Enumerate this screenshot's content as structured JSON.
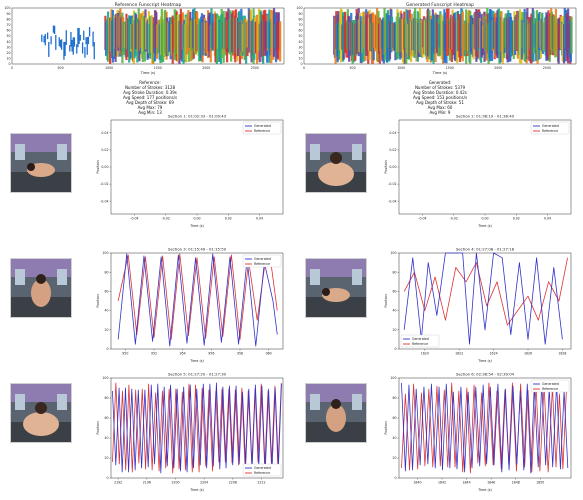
{
  "colors": {
    "generated": "#3333cc",
    "reference": "#dd3333",
    "heat_blue": "#1f6fd1",
    "heat_teal": "#1aa68f",
    "heat_green": "#55b545",
    "heat_yellow": "#e0c020",
    "heat_orange": "#ee7f1a",
    "heat_red": "#d83030",
    "heat_purple": "#6a3fa0"
  },
  "heatmaps": [
    {
      "title": "Reference Funscript Heatmap",
      "xlabel": "Time (s)",
      "yticks": [
        "100",
        "90",
        "80",
        "70",
        "60",
        "50",
        "40",
        "30",
        "20",
        "10",
        "0"
      ],
      "xticks": [
        "0",
        "500",
        "1000",
        "1500",
        "2000",
        "2500"
      ],
      "stats": [
        "Reference:",
        "Number of Strokes: 3128",
        "Avg Stroke Duration: 0.39s",
        "Avg Speed: 177 positions/s",
        "Avg Depth of Stroke: 69",
        "Avg Max: 79",
        "Avg Min: 13"
      ]
    },
    {
      "title": "Generated Funscript Heatmap",
      "xlabel": "Time (s)",
      "yticks": [
        "100",
        "90",
        "80",
        "70",
        "60",
        "50",
        "40",
        "30",
        "20",
        "10",
        "0"
      ],
      "xticks": [
        "0",
        "500",
        "1000",
        "1500",
        "2000",
        "2500"
      ],
      "stats": [
        "Generated:",
        "Number of Strokes: 5379",
        "Avg Stroke Duration: 0.42s",
        "Avg Speed: 153 positions/s",
        "Avg Depth of Stroke: 51",
        "Avg Max: 60",
        "Avg Min: 9"
      ]
    }
  ],
  "thumbnails": [
    {
      "label": "vr-frame-section-1"
    },
    {
      "label": "vr-frame-section-2"
    },
    {
      "label": "vr-frame-section-3"
    },
    {
      "label": "vr-frame-section-4"
    },
    {
      "label": "vr-frame-section-5"
    },
    {
      "label": "vr-frame-section-6"
    }
  ],
  "chart_data": [
    {
      "type": "line",
      "title": "Section 1: 01:02:33 - 01:09:43",
      "xlabel": "Time (s)",
      "ylabel": "Position",
      "legend": "top-right",
      "xlim": [
        -0.055,
        0.055
      ],
      "ylim": [
        -0.055,
        0.055
      ],
      "xticks": [
        "-0.04",
        "-0.02",
        "0.00",
        "0.02",
        "0.04"
      ],
      "yticks": [
        "0.04",
        "0.02",
        "0.00",
        "-0.02",
        "-0.04"
      ],
      "xtickvals": [
        -0.04,
        -0.02,
        0.0,
        0.02,
        0.04
      ],
      "ytickvals": [
        0.04,
        0.02,
        0.0,
        -0.02,
        -0.04
      ],
      "series": [
        {
          "name": "Generated",
          "x": [],
          "y": []
        },
        {
          "name": "Reference",
          "x": [],
          "y": []
        }
      ]
    },
    {
      "type": "line",
      "title": "Section 2: 01:38:19 - 01:38:40",
      "xlabel": "Time (s)",
      "ylabel": "Position",
      "legend": "top-right",
      "xlim": [
        -0.055,
        0.055
      ],
      "ylim": [
        -0.055,
        0.055
      ],
      "xticks": [
        "-0.04",
        "-0.02",
        "0.00",
        "0.02",
        "0.04"
      ],
      "yticks": [
        "0.04",
        "0.02",
        "0.00",
        "-0.02",
        "-0.04"
      ],
      "xtickvals": [
        -0.04,
        -0.02,
        0.0,
        0.02,
        0.04
      ],
      "ytickvals": [
        0.04,
        0.02,
        0.0,
        -0.02,
        -0.04
      ],
      "series": [
        {
          "name": "Generated",
          "x": [],
          "y": []
        },
        {
          "name": "Reference",
          "x": [],
          "y": []
        }
      ]
    },
    {
      "type": "line",
      "title": "Section 3: 01:15:49 - 01:15:59",
      "xlabel": "Time (s)",
      "ylabel": "Position",
      "legend": "top-right",
      "xlim": [
        949,
        961
      ],
      "ylim": [
        0,
        100
      ],
      "xticks": [
        "950",
        "952",
        "954",
        "956",
        "958",
        "960"
      ],
      "yticks": [
        "100",
        "80",
        "60",
        "40",
        "20",
        "0"
      ],
      "xtickvals": [
        950,
        952,
        954,
        956,
        958,
        960
      ],
      "ytickvals": [
        100,
        80,
        60,
        40,
        20,
        0
      ],
      "series": [
        {
          "name": "Generated",
          "x": [
            949.5,
            950.1,
            950.7,
            951.3,
            951.9,
            952.5,
            953.1,
            953.7,
            954.3,
            954.9,
            955.5,
            956.1,
            956.7,
            957.3,
            957.9,
            958.5,
            959.1,
            959.7,
            960.3,
            960.6
          ],
          "y": [
            10,
            99,
            5,
            97,
            8,
            96,
            3,
            98,
            6,
            95,
            4,
            99,
            7,
            96,
            5,
            94,
            3,
            90,
            50,
            15
          ]
        },
        {
          "name": "Reference",
          "x": [
            949.5,
            950.2,
            950.8,
            951.4,
            952.0,
            952.6,
            953.2,
            953.8,
            954.4,
            955.0,
            955.6,
            956.2,
            956.8,
            957.4,
            958.0,
            958.6,
            959.2,
            959.8,
            960.2,
            960.6
          ],
          "y": [
            50,
            98,
            15,
            96,
            12,
            97,
            10,
            99,
            14,
            95,
            11,
            96,
            13,
            98,
            10,
            92,
            30,
            95,
            85,
            40
          ]
        }
      ]
    },
    {
      "type": "line",
      "title": "Section 4: 01:27:08 - 01:27:18",
      "xlabel": "Time (s)",
      "ylabel": "Position",
      "legend": "bottom-left",
      "xlim": [
        1618.5,
        1628.5
      ],
      "ylim": [
        0,
        100
      ],
      "xticks": [
        "1620",
        "1622",
        "1624",
        "1626",
        "1628"
      ],
      "yticks": [
        "100",
        "80",
        "60",
        "40",
        "20",
        "0"
      ],
      "xtickvals": [
        1620,
        1622,
        1624,
        1626,
        1628
      ],
      "ytickvals": [
        100,
        80,
        60,
        40,
        20,
        0
      ],
      "series": [
        {
          "name": "Generated",
          "x": [
            1618.8,
            1619.3,
            1619.8,
            1620.2,
            1620.7,
            1621.2,
            1621.7,
            1622.2,
            1622.6,
            1623.0,
            1623.5,
            1624.0,
            1624.5,
            1625.0,
            1625.5,
            1626.0,
            1626.5,
            1627.0,
            1627.5,
            1628.0
          ],
          "y": [
            20,
            95,
            10,
            90,
            35,
            100,
            100,
            100,
            5,
            100,
            20,
            100,
            95,
            15,
            90,
            10,
            95,
            5,
            85,
            10
          ]
        },
        {
          "name": "Reference",
          "x": [
            1618.8,
            1619.4,
            1620.0,
            1620.6,
            1621.2,
            1621.8,
            1622.4,
            1623.0,
            1623.6,
            1624.2,
            1624.8,
            1625.4,
            1626.0,
            1626.6,
            1627.2,
            1627.8,
            1628.3
          ],
          "y": [
            60,
            80,
            40,
            75,
            30,
            85,
            70,
            90,
            45,
            70,
            25,
            40,
            55,
            30,
            70,
            50,
            95
          ]
        }
      ]
    },
    {
      "type": "line",
      "title": "Section 5: 01:27:20 - 01:27:30",
      "xlabel": "Time (s)",
      "ylabel": "Position",
      "legend": "bottom-right",
      "xlim": [
        2191,
        2215
      ],
      "ylim": [
        0,
        100
      ],
      "xticks": [
        "2192",
        "2196",
        "2200",
        "2204",
        "2208",
        "2212"
      ],
      "yticks": [
        "100",
        "80",
        "60",
        "40",
        "20",
        "0"
      ],
      "xtickvals": [
        2192,
        2196,
        2200,
        2204,
        2208,
        2212
      ],
      "ytickvals": [
        100,
        80,
        60,
        40,
        20,
        0
      ],
      "periodic": true,
      "series": [
        {
          "name": "Generated",
          "x": [],
          "y": []
        },
        {
          "name": "Reference",
          "x": [],
          "y": []
        }
      ]
    },
    {
      "type": "line",
      "title": "Section 6: 02:38:54 - 02:39:04",
      "xlabel": "Time (s)",
      "ylabel": "Position",
      "legend": "top-right",
      "xlim": [
        1838.5,
        1852.5
      ],
      "ylim": [
        0,
        100
      ],
      "xticks": [
        "1840",
        "1842",
        "1844",
        "1846",
        "1848",
        "1850"
      ],
      "yticks": [
        "100",
        "80",
        "60",
        "40",
        "20",
        "0"
      ],
      "xtickvals": [
        1840,
        1842,
        1844,
        1846,
        1848,
        1850
      ],
      "ytickvals": [
        100,
        80,
        60,
        40,
        20,
        0
      ],
      "periodic": true,
      "series": [
        {
          "name": "Generated",
          "x": [],
          "y": []
        },
        {
          "name": "Reference",
          "x": [],
          "y": []
        }
      ]
    }
  ]
}
